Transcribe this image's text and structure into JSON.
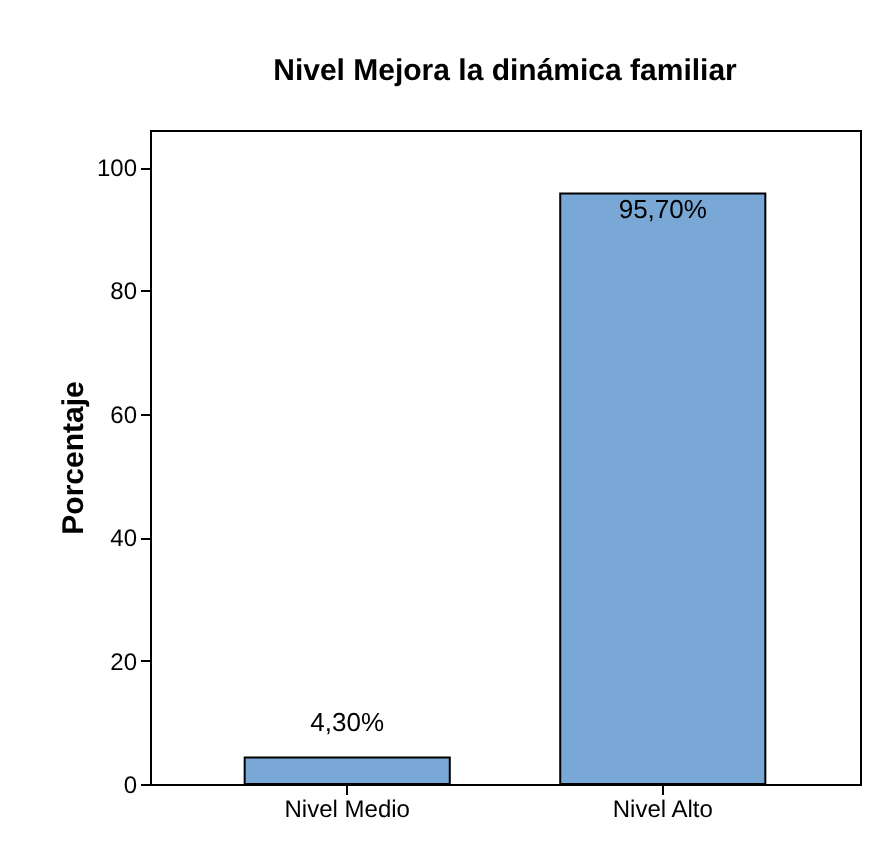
{
  "chart_data": {
    "type": "bar",
    "title": "Nivel Mejora la dinámica familiar",
    "ylabel": "Porcentaje",
    "categories": [
      "Nivel Medio",
      "Nivel Alto"
    ],
    "values": [
      4.3,
      95.7
    ],
    "value_labels": [
      "4,30%",
      "95,70%"
    ],
    "color": "#79a7d6",
    "ylim": [
      0,
      106
    ],
    "yticks": [
      0,
      20,
      40,
      60,
      80,
      100
    ],
    "grid": false
  }
}
